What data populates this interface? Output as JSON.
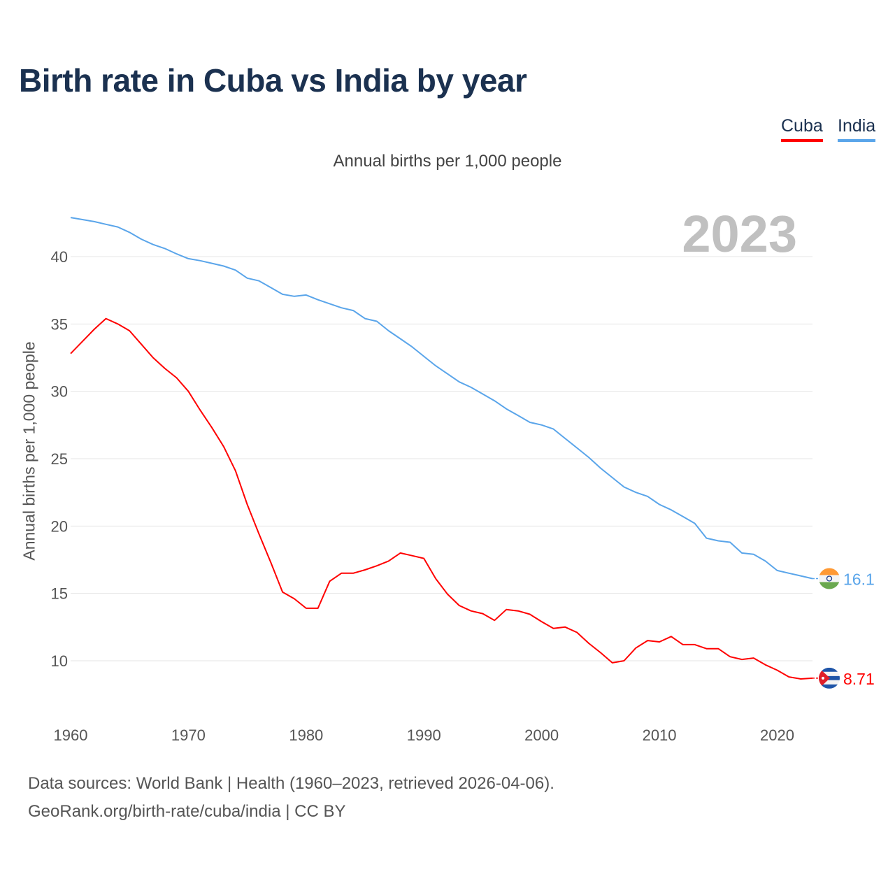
{
  "title": "Birth rate in Cuba vs India by year",
  "subtitle": "Annual births per 1,000 people",
  "footer": {
    "line1": "Data sources: World Bank | Health (1960–2023, retrieved 2026-04-06).",
    "line2": "GeoRank.org/birth-rate/cuba/india | CC BY"
  },
  "chart_data": {
    "type": "line",
    "title": "Birth rate in Cuba vs India by year",
    "xlabel": "",
    "ylabel": "Annual births per 1,000 people",
    "year_label": "2023",
    "xlim": [
      1960,
      2023
    ],
    "ylim": [
      7,
      43
    ],
    "x_ticks": [
      1960,
      1970,
      1980,
      1990,
      2000,
      2010,
      2020
    ],
    "y_ticks": [
      10,
      15,
      20,
      25,
      30,
      35,
      40
    ],
    "grid": true,
    "legend_position": "top-right",
    "x": [
      1960,
      1961,
      1962,
      1963,
      1964,
      1965,
      1966,
      1967,
      1968,
      1969,
      1970,
      1971,
      1972,
      1973,
      1974,
      1975,
      1976,
      1977,
      1978,
      1979,
      1980,
      1981,
      1982,
      1983,
      1984,
      1985,
      1986,
      1987,
      1988,
      1989,
      1990,
      1991,
      1992,
      1993,
      1994,
      1995,
      1996,
      1997,
      1998,
      1999,
      2000,
      2001,
      2002,
      2003,
      2004,
      2005,
      2006,
      2007,
      2008,
      2009,
      2010,
      2011,
      2012,
      2013,
      2014,
      2015,
      2016,
      2017,
      2018,
      2019,
      2020,
      2021,
      2022,
      2023
    ],
    "series": [
      {
        "name": "Cuba",
        "color": "#ff0000",
        "end_label": "8.71",
        "flag": "cuba-flag",
        "values": [
          32.8,
          33.7,
          34.6,
          35.4,
          35.0,
          34.5,
          33.5,
          32.5,
          31.7,
          31.0,
          30.0,
          28.6,
          27.3,
          25.9,
          24.1,
          21.6,
          19.4,
          17.3,
          15.1,
          14.6,
          13.9,
          13.9,
          15.9,
          16.5,
          16.5,
          16.75,
          17.05,
          17.4,
          18.0,
          17.8,
          17.6,
          16.1,
          14.95,
          14.1,
          13.7,
          13.5,
          13.0,
          13.8,
          13.7,
          13.45,
          12.9,
          12.4,
          12.5,
          12.1,
          11.3,
          10.6,
          9.85,
          10.0,
          10.95,
          11.5,
          11.4,
          11.8,
          11.2,
          11.2,
          10.9,
          10.9,
          10.3,
          10.1,
          10.2,
          9.7,
          9.3,
          8.8,
          8.65,
          8.71
        ]
      },
      {
        "name": "India",
        "color": "#5aa5ea",
        "end_label": "16.1",
        "flag": "india-flag",
        "values": [
          42.9,
          42.75,
          42.6,
          42.4,
          42.2,
          41.8,
          41.3,
          40.9,
          40.6,
          40.2,
          39.85,
          39.7,
          39.5,
          39.3,
          39.0,
          38.4,
          38.2,
          37.7,
          37.2,
          37.05,
          37.15,
          36.8,
          36.5,
          36.2,
          36.0,
          35.4,
          35.2,
          34.5,
          33.9,
          33.3,
          32.6,
          31.9,
          31.3,
          30.7,
          30.3,
          29.8,
          29.3,
          28.7,
          28.2,
          27.7,
          27.5,
          27.2,
          26.5,
          25.8,
          25.1,
          24.3,
          23.6,
          22.9,
          22.5,
          22.2,
          21.6,
          21.2,
          20.7,
          20.2,
          19.1,
          18.9,
          18.8,
          18.0,
          17.9,
          17.4,
          16.7,
          16.5,
          16.3,
          16.1
        ]
      }
    ]
  }
}
